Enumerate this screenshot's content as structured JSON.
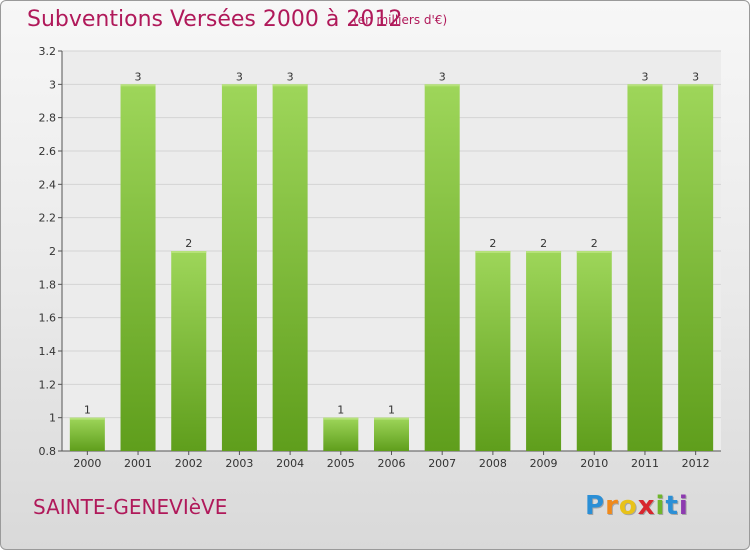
{
  "title": "Subventions Versées 2000 à 2012",
  "subtitle": "(en milliers d'€)",
  "city": "SAINTE-GENEVIèVE",
  "logo": {
    "letters": [
      "P",
      "r",
      "o",
      "x",
      "i",
      "t",
      "i"
    ],
    "colors": [
      "#2b8fd6",
      "#f08a1c",
      "#e8c21a",
      "#d8262e",
      "#6fb52c",
      "#2b8fd6",
      "#8d3ab0"
    ]
  },
  "colors": {
    "bar": "#7cc23a",
    "bar_top": "#9ed65a",
    "text": "#b0195a"
  },
  "chart_data": {
    "type": "bar",
    "categories": [
      "2000",
      "2001",
      "2002",
      "2003",
      "2004",
      "2005",
      "2006",
      "2007",
      "2008",
      "2009",
      "2010",
      "2011",
      "2012"
    ],
    "values": [
      1,
      3,
      2,
      3,
      3,
      1,
      1,
      3,
      2,
      2,
      2,
      3,
      3
    ],
    "data_labels": [
      "1",
      "3",
      "2",
      "3",
      "3",
      "1",
      "1",
      "3",
      "2",
      "2",
      "2",
      "3",
      "3"
    ],
    "ylim": [
      0.8,
      3.2
    ],
    "yticks": [
      0.8,
      1,
      1.2,
      1.4,
      1.6,
      1.8,
      2,
      2.2,
      2.4,
      2.6,
      2.8,
      3,
      3.2
    ],
    "ytick_labels": [
      "0.8",
      "1",
      "1.2",
      "1.4",
      "1.6",
      "1.8",
      "2",
      "2.2",
      "2.4",
      "2.6",
      "2.8",
      "3",
      "3.2"
    ],
    "grid": true,
    "title": "Subventions Versées 2000 à 2012",
    "xlabel": "",
    "ylabel": ""
  }
}
